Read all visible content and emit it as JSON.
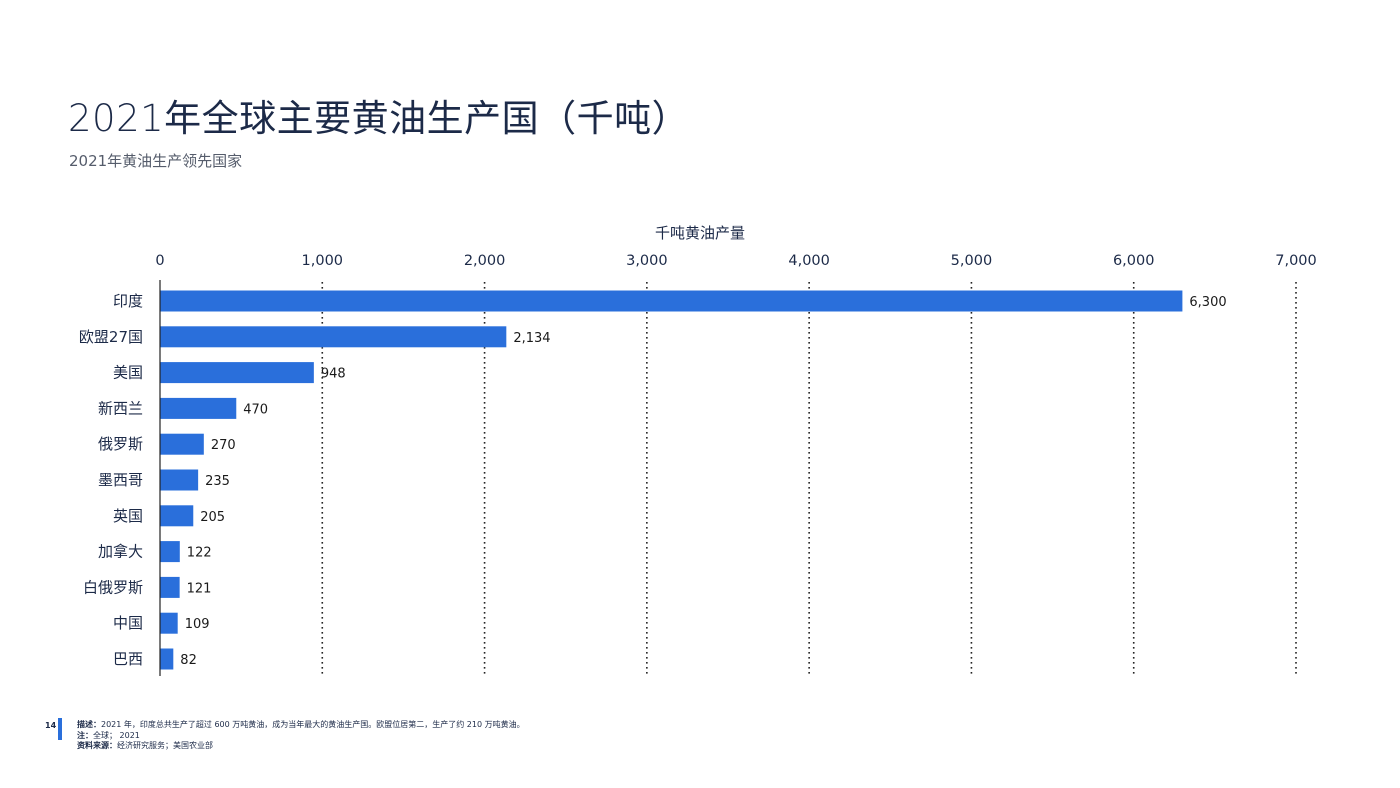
{
  "page": {
    "title": "2021年全球主要黄油生产国（千吨）",
    "subtitle": "2021年黄油生产领先国家",
    "page_number": "14"
  },
  "footer": {
    "description_label": "描述：",
    "description_text": "2021 年，印度总共生产了超过 600 万吨黄油，成为当年最大的黄油生产国。欧盟位居第二，生产了约 210 万吨黄油。",
    "note_label": "注：",
    "note_text": "全球； 2021",
    "source_label": "资料来源：",
    "source_text": "经济研究服务；美国农业部"
  },
  "colors": {
    "bar": "#2a6fdb",
    "grid": "#222222",
    "text": "#1c2a48"
  },
  "chart_data": {
    "type": "bar",
    "orientation": "horizontal",
    "xlabel": "千吨黄油产量",
    "xlabel_position": "top",
    "xlim": [
      0,
      7000
    ],
    "xticks": [
      0,
      1000,
      2000,
      3000,
      4000,
      5000,
      6000,
      7000
    ],
    "xtick_labels": [
      "0",
      "1,000",
      "2,000",
      "3,000",
      "4,000",
      "5,000",
      "6,000",
      "7,000"
    ],
    "grid": "vertical dotted",
    "categories": [
      "印度",
      "欧盟27国",
      "美国",
      "新西兰",
      "俄罗斯",
      "墨西哥",
      "英国",
      "加拿大",
      "白俄罗斯",
      "中国",
      "巴西"
    ],
    "values": [
      6300,
      2134,
      948,
      470,
      270,
      235,
      205,
      122,
      121,
      109,
      82
    ],
    "value_labels": [
      "6,300",
      "2,134",
      "948",
      "470",
      "270",
      "235",
      "205",
      "122",
      "121",
      "109",
      "82"
    ]
  }
}
